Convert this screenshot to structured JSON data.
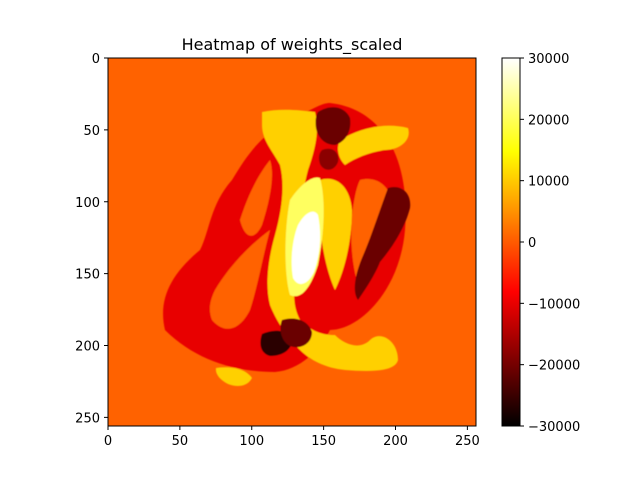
{
  "chart_data": {
    "type": "heatmap",
    "title": "Heatmap of weights_scaled",
    "xlabel": "",
    "ylabel": "",
    "xlim": [
      0,
      256
    ],
    "ylim": [
      256,
      0
    ],
    "x_ticks": [
      0,
      50,
      100,
      150,
      200,
      250
    ],
    "y_ticks": [
      0,
      50,
      100,
      150,
      200,
      250
    ],
    "colormap": "hot",
    "colorbar": {
      "range": [
        -30000,
        30000
      ],
      "ticks": [
        30000,
        20000,
        10000,
        0,
        -10000,
        -20000,
        -30000
      ]
    },
    "background_value": 0,
    "regions": [
      {
        "label": "outer-red-loop",
        "value": -10000
      },
      {
        "label": "inner-yellow-band",
        "value": 12000
      },
      {
        "label": "central-white-core",
        "value": 30000
      },
      {
        "label": "dark-upper-blob",
        "value": -22000
      },
      {
        "label": "dark-right-band",
        "value": -23000
      },
      {
        "label": "dark-lower-blob",
        "value": -27000
      }
    ],
    "colors": {
      "background": "#ff6200",
      "red": "#e80000",
      "dark_red": "#6b0000",
      "very_dark": "#2a0000",
      "yellow": "#ffd000",
      "light_yellow": "#ffff60",
      "white": "#ffffff"
    }
  }
}
